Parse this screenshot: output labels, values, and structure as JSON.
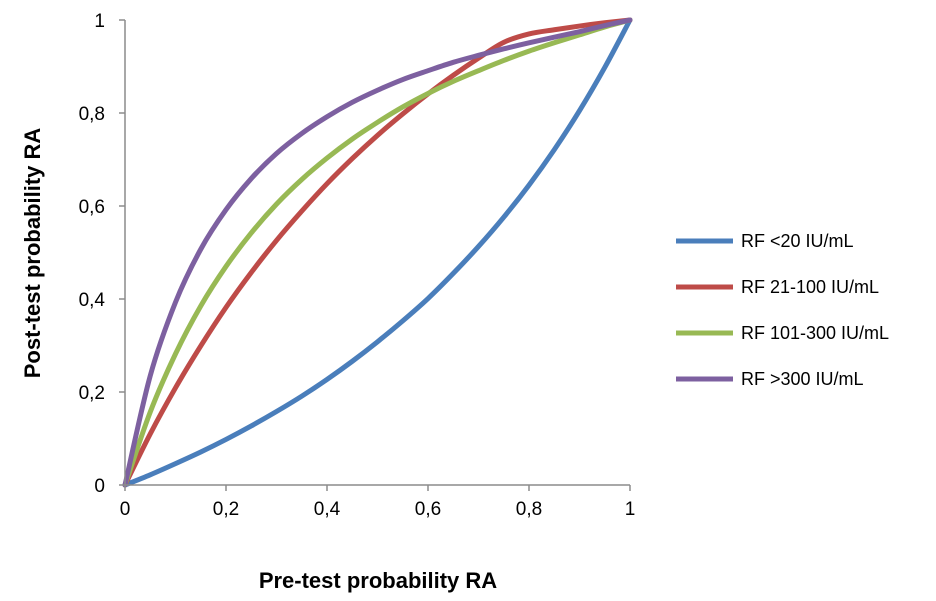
{
  "chart_data": {
    "type": "line",
    "xlabel": "Pre-test probability RA",
    "ylabel": "Post-test probability RA",
    "xlim": [
      0,
      1
    ],
    "ylim": [
      0,
      1
    ],
    "x_ticks": [
      "0",
      "0,2",
      "0,4",
      "0,6",
      "0,8",
      "1"
    ],
    "y_ticks": [
      "0",
      "0,2",
      "0,4",
      "0,6",
      "0,8",
      "1"
    ],
    "grid": false,
    "legend_position": "right",
    "x": [
      0,
      0.05,
      0.1,
      0.15,
      0.2,
      0.25,
      0.3,
      0.35,
      0.4,
      0.45,
      0.5,
      0.55,
      0.6,
      0.65,
      0.7,
      0.75,
      0.8,
      0.85,
      0.9,
      0.95,
      1
    ],
    "series": [
      {
        "name": "RF <20 IU/mL",
        "color": "#4a7ebb",
        "values": [
          0,
          0.022,
          0.046,
          0.071,
          0.098,
          0.127,
          0.158,
          0.191,
          0.227,
          0.266,
          0.308,
          0.353,
          0.401,
          0.455,
          0.513,
          0.576,
          0.645,
          0.721,
          0.805,
          0.898,
          1
        ]
      },
      {
        "name": "RF 21-100 IU/mL",
        "color": "#be4b48",
        "values": [
          0,
          0.11,
          0.209,
          0.299,
          0.382,
          0.457,
          0.526,
          0.589,
          0.648,
          0.702,
          0.752,
          0.798,
          0.841,
          0.881,
          0.918,
          0.952,
          0.97,
          0.979,
          0.987,
          0.994,
          1
        ]
      },
      {
        "name": "RF 101-300 IU/mL",
        "color": "#98b954",
        "values": [
          0,
          0.157,
          0.282,
          0.385,
          0.47,
          0.542,
          0.604,
          0.657,
          0.703,
          0.744,
          0.78,
          0.813,
          0.842,
          0.868,
          0.891,
          0.913,
          0.933,
          0.951,
          0.968,
          0.985,
          1
        ]
      },
      {
        "name": "RF >300 IU/mL",
        "color": "#7d60a0",
        "values": [
          0,
          0.235,
          0.393,
          0.507,
          0.592,
          0.659,
          0.713,
          0.756,
          0.792,
          0.823,
          0.849,
          0.872,
          0.891,
          0.909,
          0.924,
          0.938,
          0.951,
          0.963,
          0.975,
          0.988,
          1
        ]
      }
    ]
  }
}
